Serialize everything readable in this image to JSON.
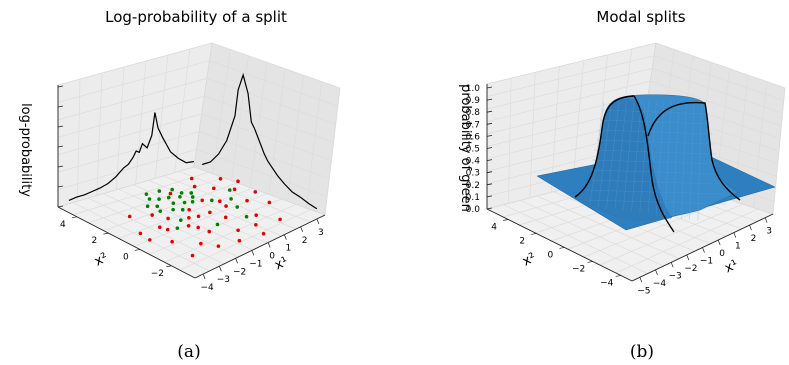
{
  "chart_data": [
    {
      "type": "line",
      "panel": "a",
      "title": "Log-probability of a split",
      "xlabel": "x¹",
      "ylabel": "x²",
      "zlabel": "log-probability",
      "x_ticks": [
        -4,
        -3,
        -2,
        -1,
        0,
        1,
        2,
        3
      ],
      "y_ticks": [
        -2,
        0,
        2,
        4
      ],
      "z_tick_labels": [],
      "grid": true,
      "caption": "(a)",
      "back_wall_curve": {
        "y": [
          -3.5,
          -3.0,
          -2.5,
          -2.0,
          -1.5,
          -1.2,
          -1.0,
          -0.8,
          -0.5,
          -0.2,
          0.0,
          0.2,
          0.4,
          0.7,
          1.0,
          1.5,
          2.0,
          2.5,
          3.0,
          3.5,
          4.0,
          4.5
        ],
        "z": [
          0.05,
          0.06,
          0.12,
          0.2,
          0.35,
          0.45,
          0.6,
          0.4,
          0.3,
          0.35,
          0.28,
          0.3,
          0.25,
          0.2,
          0.18,
          0.12,
          0.08,
          0.06,
          0.05,
          0.04,
          0.04,
          0.03
        ]
      },
      "side_wall_curve": {
        "x": [
          -4.0,
          -3.5,
          -3.0,
          -2.5,
          -2.0,
          -1.8,
          -1.5,
          -1.2,
          -1.0,
          -0.8,
          -0.5,
          -0.2,
          0.0,
          0.3,
          0.6,
          1.0,
          1.5,
          2.0,
          2.5,
          3.0
        ],
        "z": [
          0.05,
          0.1,
          0.2,
          0.35,
          0.6,
          0.85,
          1.0,
          0.85,
          0.6,
          0.55,
          0.45,
          0.35,
          0.3,
          0.25,
          0.2,
          0.15,
          0.1,
          0.08,
          0.05,
          0.03
        ]
      },
      "series": [
        {
          "name": "",
          "color": "#008000",
          "points": [
            [
              -1.5,
              1.8
            ],
            [
              -1.3,
              2.2
            ],
            [
              -1.0,
              1.5
            ],
            [
              -0.8,
              2.6
            ],
            [
              -0.6,
              1.9
            ],
            [
              -0.4,
              2.4
            ],
            [
              -0.2,
              1.6
            ],
            [
              0.0,
              2.1
            ],
            [
              0.2,
              2.8
            ],
            [
              0.4,
              1.7
            ],
            [
              -1.1,
              2.9
            ],
            [
              -0.7,
              1.2
            ],
            [
              0.3,
              2.3
            ],
            [
              -0.3,
              3.1
            ],
            [
              -1.6,
              2.5
            ],
            [
              0.6,
              2.0
            ],
            [
              -0.9,
              3.3
            ],
            [
              0.1,
              1.4
            ],
            [
              -1.4,
              0.6
            ],
            [
              0.8,
              0.9
            ],
            [
              1.2,
              -0.3
            ],
            [
              -0.5,
              -0.8
            ],
            [
              1.5,
              0.4
            ],
            [
              -2.0,
              0.2
            ],
            [
              0.9,
              -1.2
            ],
            [
              2.0,
              1.0
            ]
          ]
        },
        {
          "name": "",
          "color": "#e00000",
          "points": [
            [
              -3.5,
              1.0
            ],
            [
              -3.0,
              -0.5
            ],
            [
              -2.5,
              0.8
            ],
            [
              -2.2,
              -1.5
            ],
            [
              -2.0,
              1.8
            ],
            [
              -1.8,
              -2.2
            ],
            [
              -1.5,
              0.0
            ],
            [
              -1.2,
              -1.0
            ],
            [
              -1.0,
              0.5
            ],
            [
              -0.8,
              -2.5
            ],
            [
              -0.5,
              1.0
            ],
            [
              -0.2,
              -1.8
            ],
            [
              0.0,
              0.2
            ],
            [
              0.2,
              -0.6
            ],
            [
              0.5,
              1.2
            ],
            [
              0.7,
              -2.0
            ],
            [
              1.0,
              0.6
            ],
            [
              1.3,
              -1.4
            ],
            [
              1.6,
              1.6
            ],
            [
              1.9,
              -0.2
            ],
            [
              2.2,
              0.9
            ],
            [
              2.5,
              -1.0
            ],
            [
              2.8,
              1.3
            ],
            [
              -2.8,
              2.4
            ],
            [
              -3.2,
              -2.0
            ],
            [
              1.1,
              2.3
            ],
            [
              2.4,
              2.0
            ],
            [
              -1.7,
              1.1
            ],
            [
              0.4,
              -2.8
            ],
            [
              -0.6,
              0.3
            ],
            [
              1.8,
              -2.4
            ],
            [
              -2.4,
              0.4
            ],
            [
              0.9,
              0.1
            ],
            [
              -1.3,
              -0.4
            ],
            [
              2.7,
              0.1
            ],
            [
              -0.1,
              2.6
            ],
            [
              1.5,
              2.9
            ],
            [
              -3.6,
              0.3
            ]
          ]
        }
      ]
    },
    {
      "type": "surface",
      "panel": "b",
      "title": "Modal splits",
      "xlabel": "x¹",
      "ylabel": "x²",
      "zlabel": "probability of green",
      "x_ticks": [
        -5,
        -4,
        -3,
        -2,
        -1,
        0,
        1,
        2,
        3
      ],
      "y_ticks": [
        -4,
        -2,
        0,
        2,
        4
      ],
      "z_ticks": [
        0.0,
        0.1,
        0.2,
        0.3,
        0.4,
        0.5,
        0.6,
        0.7,
        0.8,
        0.9,
        1.0
      ],
      "z_tick_labels": [
        "0.0",
        "0.1",
        "0.2",
        "0.3",
        "0.4",
        "0.5",
        "0.6",
        "0.7",
        "0.8",
        "0.9",
        "1.0"
      ],
      "zlim": [
        0,
        1
      ],
      "grid": true,
      "caption": "(b)",
      "surface_color": "#2e7fbf",
      "description_values": {
        "low_probability": 0.15,
        "high_probability": 0.95,
        "region_x": [
          -1.5,
          1.0
        ],
        "region_y_min": 0.0
      }
    }
  ]
}
